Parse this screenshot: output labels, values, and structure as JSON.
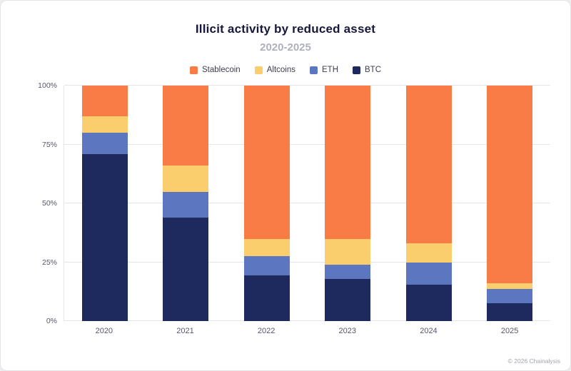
{
  "chart_data": {
    "type": "bar",
    "stacked": true,
    "title": "Illicit activity by reduced asset",
    "subtitle": "2020-2025",
    "categories": [
      "2020",
      "2021",
      "2022",
      "2023",
      "2024",
      "2025"
    ],
    "series": [
      {
        "name": "Stablecoin",
        "color": "#F97B45",
        "values": [
          13,
          34,
          65,
          65,
          67,
          84
        ]
      },
      {
        "name": "Altcoins",
        "color": "#FACD6D",
        "values": [
          7,
          11,
          7.5,
          11,
          8,
          2.5
        ]
      },
      {
        "name": "ETH",
        "color": "#5C77C0",
        "values": [
          9,
          11,
          8,
          6,
          9.5,
          6
        ]
      },
      {
        "name": "BTC",
        "color": "#1E2A5E",
        "values": [
          71,
          44,
          19.5,
          18,
          15.5,
          7.5
        ]
      }
    ],
    "ylim": [
      0,
      100
    ],
    "yticks": [
      "0%",
      "25%",
      "50%",
      "75%",
      "100%"
    ],
    "grid": true,
    "legend_position": "top"
  },
  "footer": {
    "credit": "© 2026 Chainalysis"
  }
}
